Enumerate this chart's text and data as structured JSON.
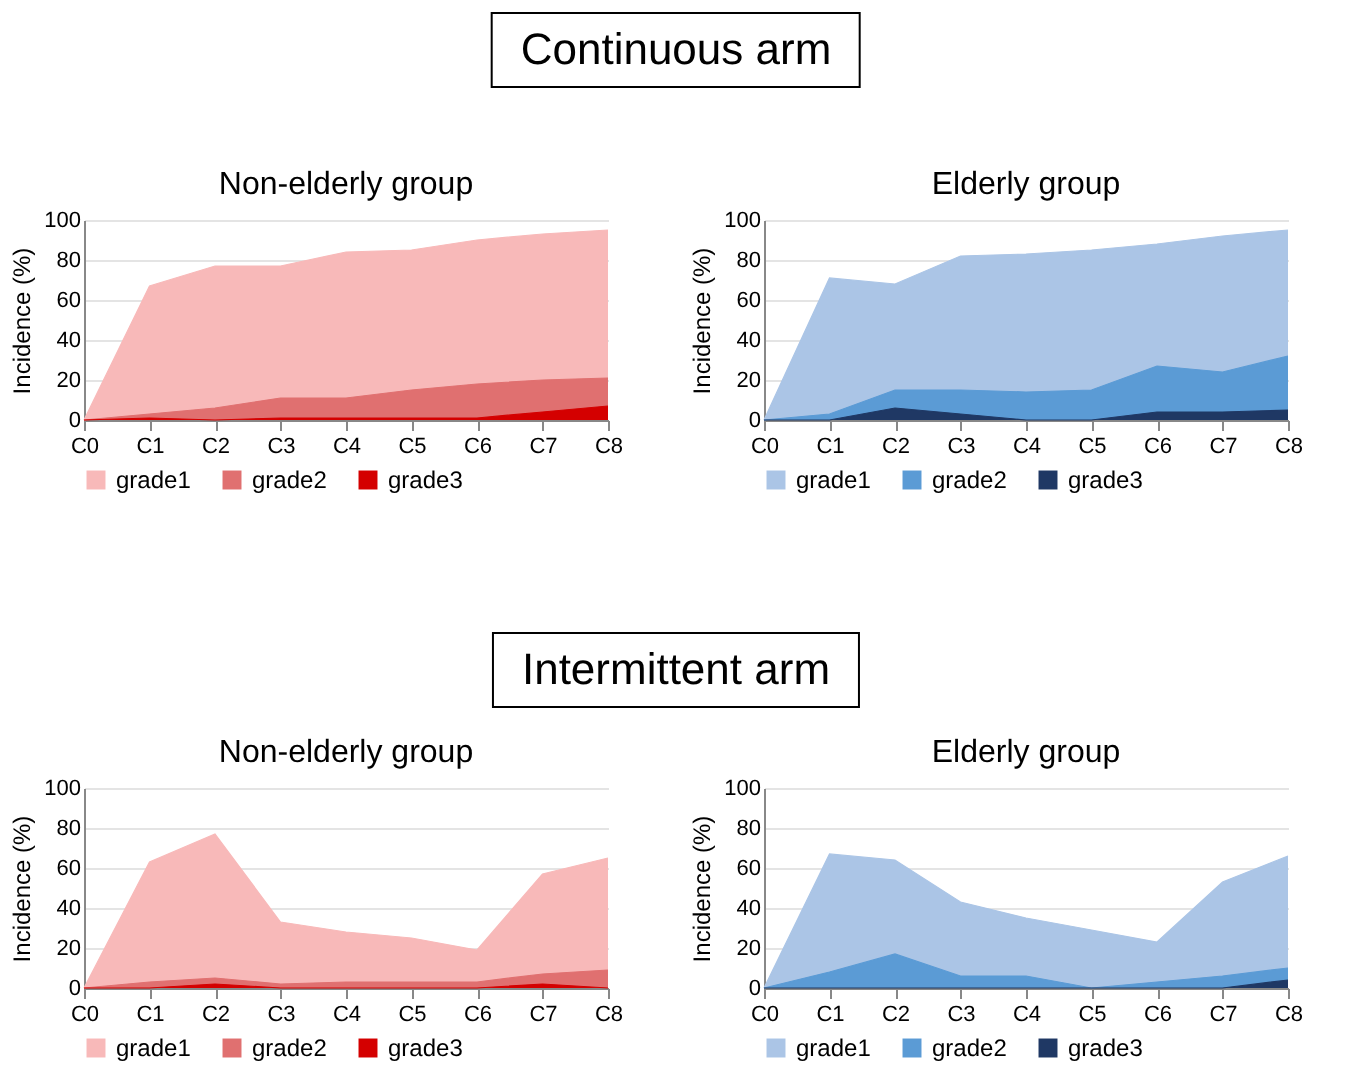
{
  "chart_data": [
    {
      "type": "other",
      "title": "Continuous arm"
    },
    {
      "type": "area",
      "title": "Non-elderly group",
      "ylabel": "Incidence (%)",
      "categories": [
        "C0",
        "C1",
        "C2",
        "C3",
        "C4",
        "C5",
        "C6",
        "C7",
        "C8"
      ],
      "ylim": [
        0,
        100
      ],
      "yticks": [
        0,
        20,
        40,
        60,
        80,
        100
      ],
      "grid": "y",
      "legend": "bottom",
      "series": [
        {
          "name": "grade1",
          "color": "#f8b9b9",
          "values": [
            0,
            67,
            77,
            77,
            84,
            85,
            90,
            93,
            95
          ]
        },
        {
          "name": "grade2",
          "color": "#e07070",
          "values": [
            0,
            3,
            6,
            11,
            11,
            15,
            18,
            20,
            21
          ]
        },
        {
          "name": "grade3",
          "color": "#d40000",
          "values": [
            0,
            1,
            0,
            1,
            1,
            1,
            1,
            4,
            7
          ]
        }
      ]
    },
    {
      "type": "area",
      "title": "Elderly group",
      "ylabel": "Incidence (%)",
      "categories": [
        "C0",
        "C1",
        "C2",
        "C3",
        "C4",
        "C5",
        "C6",
        "C7",
        "C8"
      ],
      "ylim": [
        0,
        100
      ],
      "yticks": [
        0,
        20,
        40,
        60,
        80,
        100
      ],
      "grid": "y",
      "legend": "bottom",
      "series": [
        {
          "name": "grade1",
          "color": "#abc5e6",
          "values": [
            0,
            71,
            68,
            82,
            83,
            85,
            88,
            92,
            95
          ]
        },
        {
          "name": "grade2",
          "color": "#5b9bd5",
          "values": [
            0,
            3,
            15,
            15,
            14,
            15,
            27,
            24,
            32
          ]
        },
        {
          "name": "grade3",
          "color": "#1f3864",
          "values": [
            0,
            0,
            6,
            3,
            0,
            0,
            4,
            4,
            5
          ]
        }
      ]
    },
    {
      "type": "other",
      "title": "Intermittent arm"
    },
    {
      "type": "area",
      "title": "Non-elderly group",
      "ylabel": "Incidence (%)",
      "categories": [
        "C0",
        "C1",
        "C2",
        "C3",
        "C4",
        "C5",
        "C6",
        "C7",
        "C8"
      ],
      "ylim": [
        0,
        100
      ],
      "yticks": [
        0,
        20,
        40,
        60,
        80,
        100
      ],
      "grid": "y",
      "legend": "bottom",
      "series": [
        {
          "name": "grade1",
          "color": "#f8b9b9",
          "values": [
            0,
            63,
            77,
            33,
            28,
            25,
            19,
            57,
            65
          ]
        },
        {
          "name": "grade2",
          "color": "#e07070",
          "values": [
            0,
            3,
            5,
            2,
            3,
            3,
            3,
            7,
            9
          ]
        },
        {
          "name": "grade3",
          "color": "#d40000",
          "values": [
            0,
            0,
            2,
            0,
            0,
            0,
            0,
            2,
            0
          ]
        }
      ]
    },
    {
      "type": "area",
      "title": "Elderly group",
      "ylabel": "Incidence (%)",
      "categories": [
        "C0",
        "C1",
        "C2",
        "C3",
        "C4",
        "C5",
        "C6",
        "C7",
        "C8"
      ],
      "ylim": [
        0,
        100
      ],
      "yticks": [
        0,
        20,
        40,
        60,
        80,
        100
      ],
      "grid": "y",
      "legend": "bottom",
      "series": [
        {
          "name": "grade1",
          "color": "#abc5e6",
          "values": [
            0,
            67,
            64,
            43,
            35,
            29,
            23,
            53,
            66
          ]
        },
        {
          "name": "grade2",
          "color": "#5b9bd5",
          "values": [
            0,
            8,
            17,
            6,
            6,
            0,
            3,
            6,
            10
          ]
        },
        {
          "name": "grade3",
          "color": "#1f3864",
          "values": [
            0,
            0,
            0,
            0,
            0,
            0,
            0,
            0,
            4
          ]
        }
      ]
    }
  ]
}
